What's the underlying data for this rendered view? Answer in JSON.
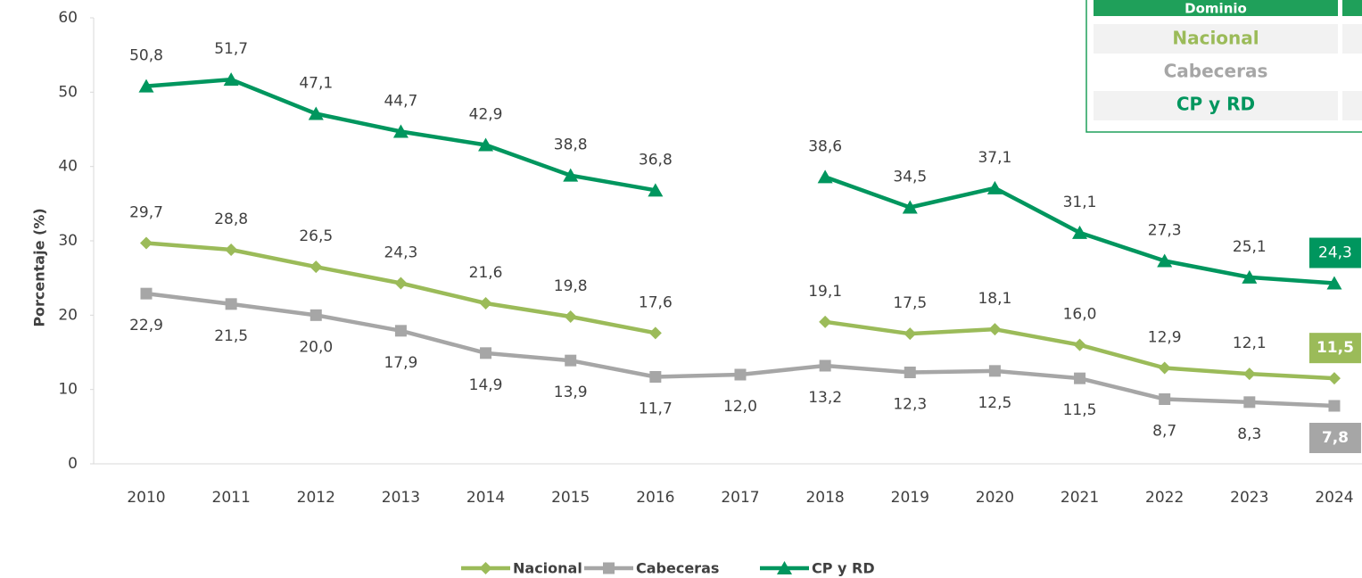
{
  "chart_data": {
    "type": "line",
    "y_label": "Porcentaje (%)",
    "categories": [
      "2010",
      "2011",
      "2012",
      "2013",
      "2014",
      "2015",
      "2016",
      "2017",
      "2018",
      "2019",
      "2020",
      "2021",
      "2022",
      "2023",
      "2024"
    ],
    "ylim": [
      0,
      60
    ],
    "yticks": [
      0,
      10,
      20,
      30,
      40,
      50,
      60
    ],
    "legend": "bottom",
    "series": [
      {
        "name": "Nacional",
        "color": "#9BBB59",
        "marker": "diamond",
        "values": [
          29.7,
          28.8,
          26.5,
          24.3,
          21.6,
          19.8,
          17.6,
          null,
          19.1,
          17.5,
          18.1,
          16.0,
          12.9,
          12.1,
          11.5
        ],
        "value_labels": [
          "29,7",
          "28,8",
          "26,5",
          "24,3",
          "21,6",
          "19,8",
          "17,6",
          null,
          "19,1",
          "17,5",
          "18,1",
          "16,0",
          "12,9",
          "12,1",
          "11,5"
        ]
      },
      {
        "name": "Cabeceras",
        "color": "#A6A6A6",
        "marker": "square",
        "values": [
          22.9,
          21.5,
          20.0,
          17.9,
          14.9,
          13.9,
          11.7,
          12.0,
          13.2,
          12.3,
          12.5,
          11.5,
          8.7,
          8.3,
          7.8
        ],
        "value_labels": [
          "22,9",
          "21,5",
          "20,0",
          "17,9",
          "14,9",
          "13,9",
          "11,7",
          "12,0",
          "13,2",
          "12,3",
          "12,5",
          "11,5",
          "8,7",
          "8,3",
          "7,8"
        ]
      },
      {
        "name": "CP y RD",
        "color": "#00965E",
        "marker": "triangle",
        "values": [
          50.8,
          51.7,
          47.1,
          44.7,
          42.9,
          38.8,
          36.8,
          null,
          38.6,
          34.5,
          37.1,
          31.1,
          27.3,
          25.1,
          24.3
        ],
        "value_labels": [
          "50,8",
          "51,7",
          "47,1",
          "44,7",
          "42,9",
          "38,8",
          "36,8",
          null,
          "38,6",
          "34,5",
          "37,1",
          "31,1",
          "27,3",
          "25,1",
          "24,3"
        ]
      }
    ]
  },
  "table": {
    "header": "Dominio",
    "rows": [
      "Nacional",
      "Cabeceras",
      "CP y RD"
    ]
  }
}
